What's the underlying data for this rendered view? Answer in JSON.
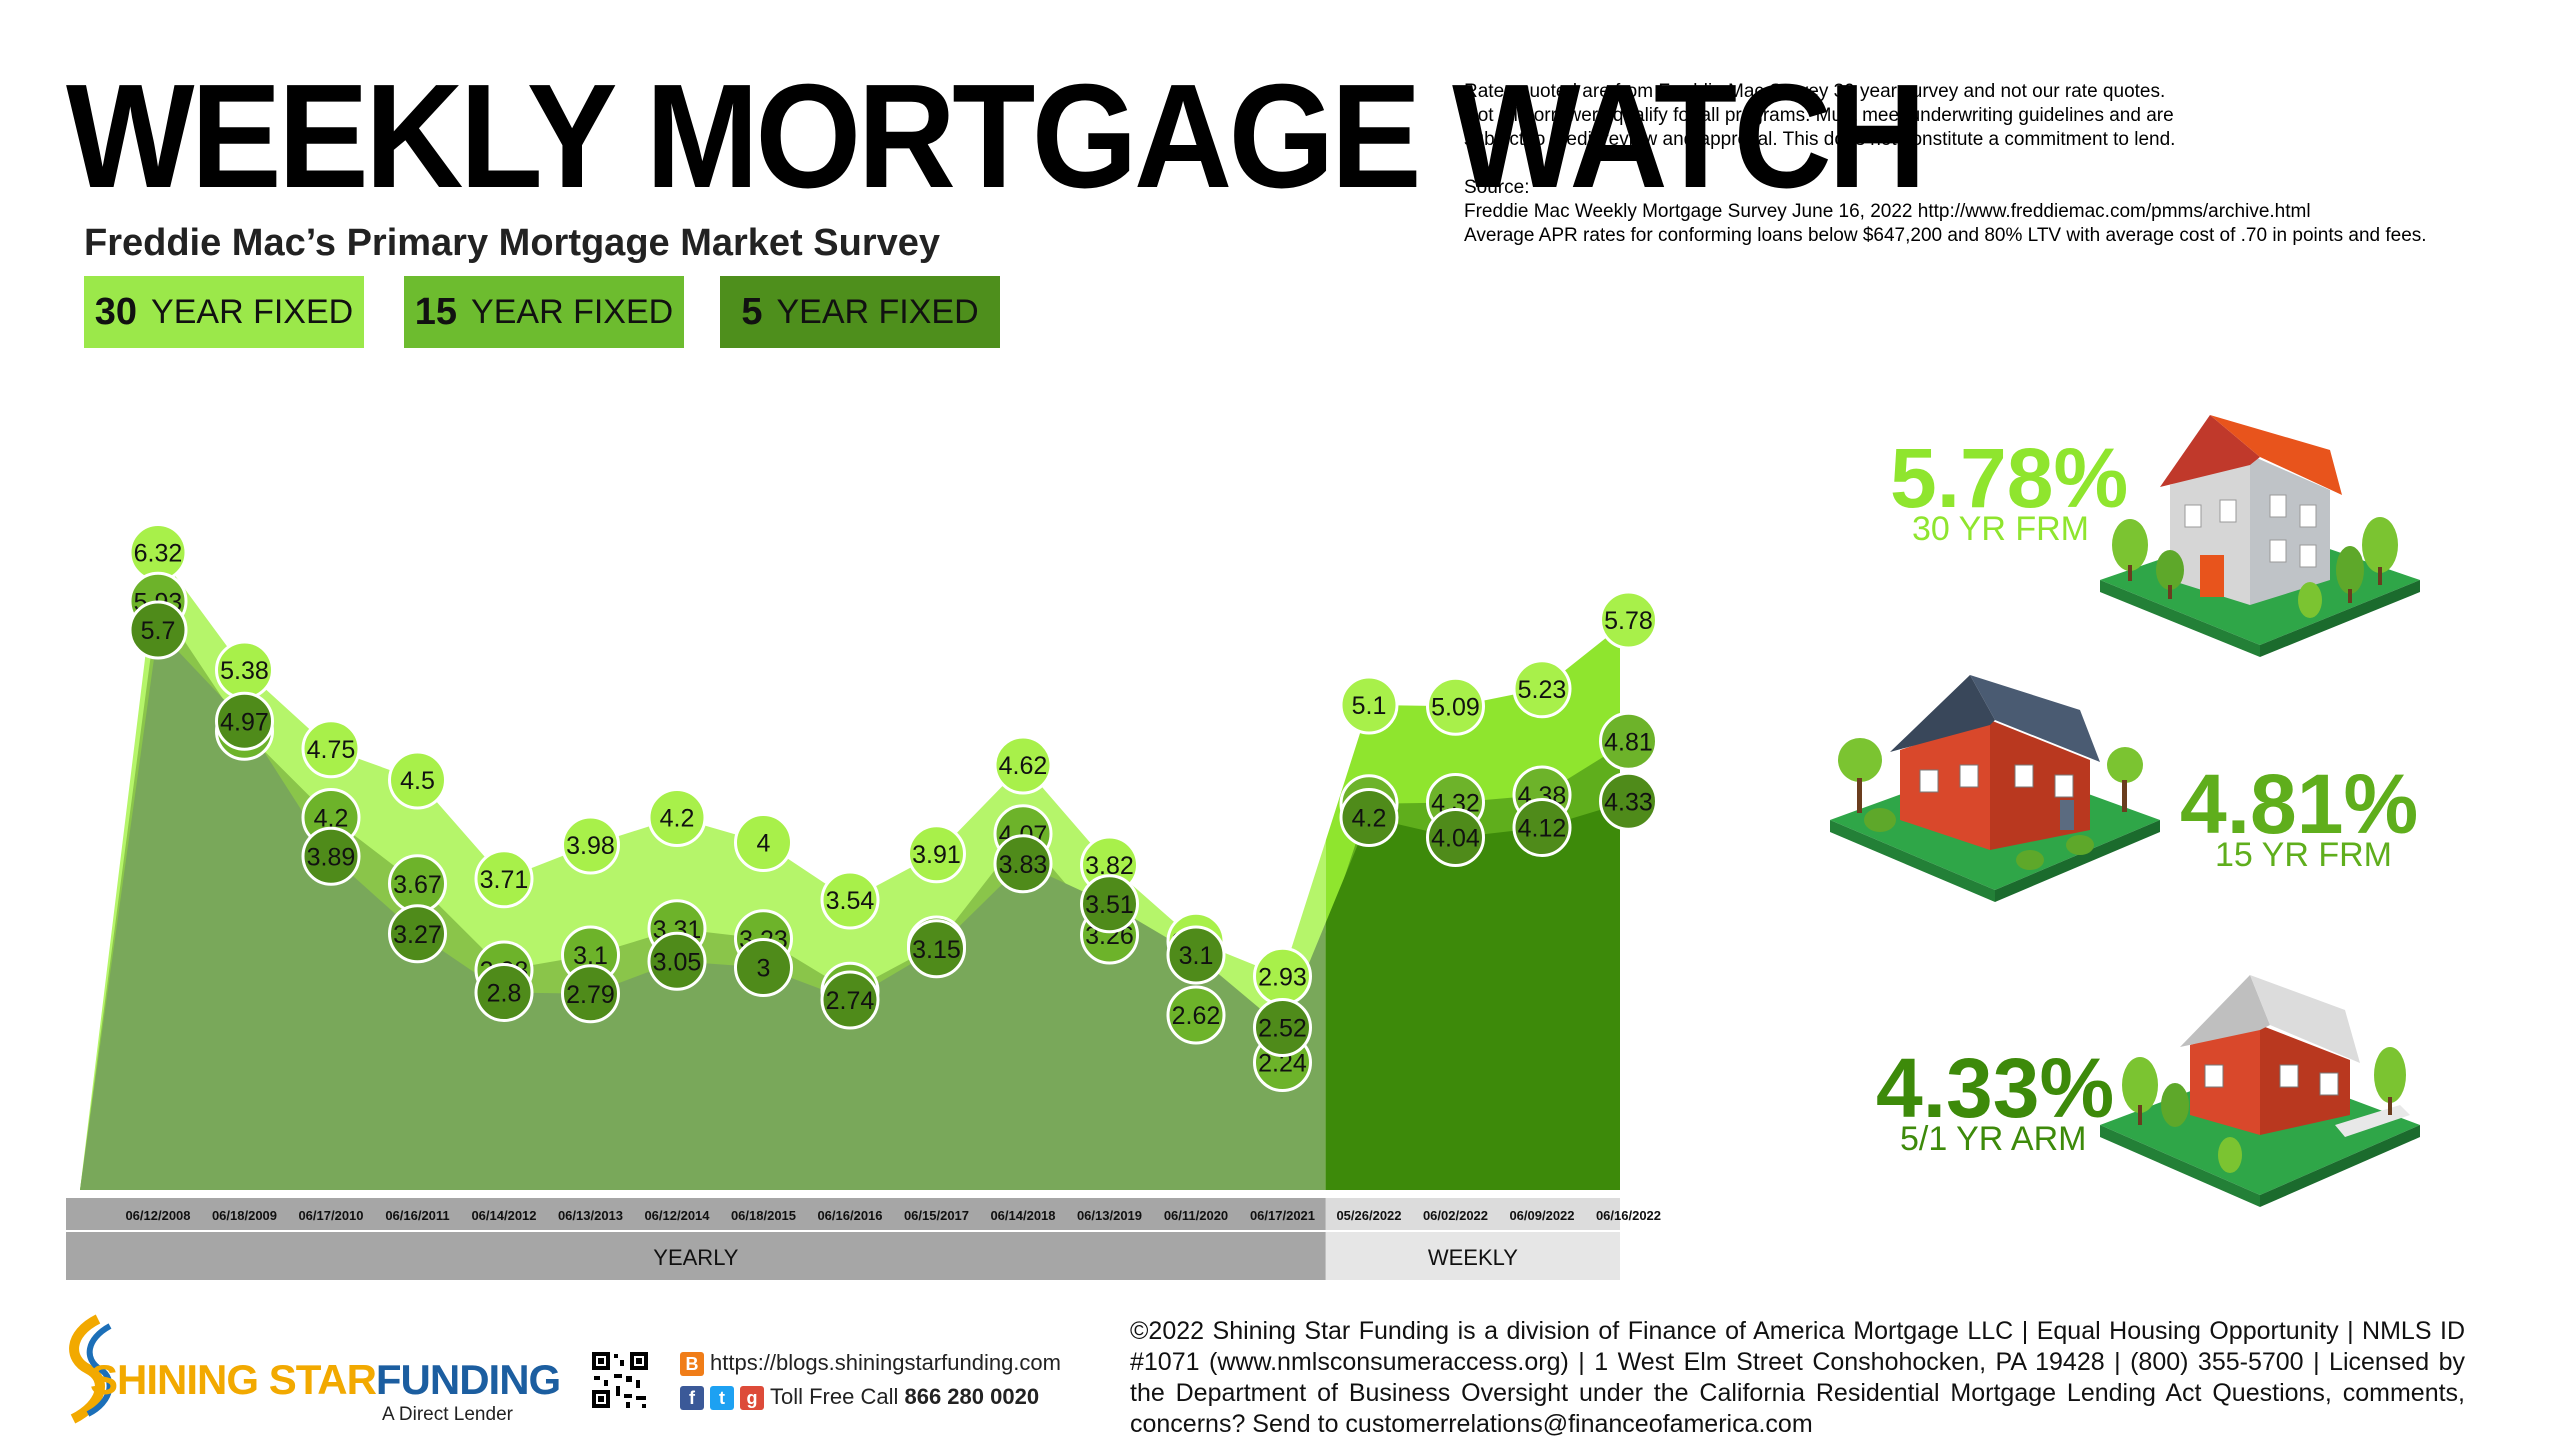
{
  "title": "WEEKLY MORTGAGE WATCH",
  "subtitle": "Freddie Mac’s Primary Mortgage Market Survey",
  "legend": [
    {
      "num": "30",
      "label": "YEAR FIXED",
      "color": "#9be84a"
    },
    {
      "num": "15",
      "label": "YEAR FIXED",
      "color": "#6dbc2f"
    },
    {
      "num": "5",
      "label": "YEAR FIXED",
      "color": "#4e8f1c"
    }
  ],
  "disclaimer": {
    "line1": "Rates quoted are from Freddie Mac Survey 30 year survey and not our rate quotes.",
    "line2": "Not all borrowers qualify for all programs. Must meet underwriting guidelines and are",
    "line3": "subject to credit review and approval. This does not constitute a commitment to lend.",
    "source_label": "Source:",
    "source1": "Freddie Mac Weekly Mortgage Survey June 16, 2022 http://www.freddiemac.com/pmms/archive.html",
    "source2": "Average APR rates for conforming loans below $647,200 and 80%  LTV with average cost of .70 in points and fees."
  },
  "chart_data": {
    "type": "area",
    "categories": [
      "06/12/2008",
      "06/18/2009",
      "06/17/2010",
      "06/16/2011",
      "06/14/2012",
      "06/13/2013",
      "06/12/2014",
      "06/18/2015",
      "06/16/2016",
      "06/15/2017",
      "06/14/2018",
      "06/13/2019",
      "06/11/2020",
      "06/17/2021",
      "05/26/2022",
      "06/02/2022",
      "06/09/2022",
      "06/16/2022"
    ],
    "series": [
      {
        "name": "30 YEAR FIXED",
        "values": [
          6.32,
          5.38,
          4.75,
          4.5,
          3.71,
          3.98,
          4.2,
          4,
          3.54,
          3.91,
          4.62,
          3.82,
          3.21,
          2.93,
          5.1,
          5.09,
          5.23,
          5.78
        ]
      },
      {
        "name": "15 YEAR FIXED",
        "values": [
          5.93,
          4.89,
          4.2,
          3.67,
          2.98,
          3.1,
          3.31,
          3.23,
          2.81,
          3.18,
          4.07,
          3.26,
          2.62,
          2.24,
          4.31,
          4.32,
          4.38,
          4.81
        ]
      },
      {
        "name": "5 YEAR FIXED",
        "values": [
          5.7,
          4.97,
          3.89,
          3.27,
          2.8,
          2.79,
          3.05,
          3,
          2.74,
          3.15,
          3.83,
          3.51,
          3.1,
          2.52,
          4.2,
          4.04,
          4.12,
          4.33
        ]
      }
    ],
    "groups": [
      {
        "label": "YEARLY",
        "count": 14
      },
      {
        "label": "WEEKLY",
        "count": 4
      }
    ],
    "colors": {
      "s30_yearly": "#b5f56a",
      "s15_yearly": "#8ac54a",
      "s5_yearly": "#79a85a",
      "s30_weekly": "#8fe52e",
      "s15_weekly": "#5fae1c",
      "s5_weekly": "#3d8a0a",
      "marker_30": "#a8f04a",
      "marker_15": "#6db32a",
      "marker_5": "#4f8b1a"
    }
  },
  "highlights": [
    {
      "rate": "5.78%",
      "label": "30 YR FRM",
      "color": "#8fe52e"
    },
    {
      "rate": "4.81%",
      "label": "15 YR FRM",
      "color": "#5fae1c"
    },
    {
      "rate": "4.33%",
      "label": "5/1 YR ARM",
      "color": "#3d8a0a"
    }
  ],
  "footer": {
    "text": "©2022 Shining Star Funding is a division of Finance of America Mortgage LLC | Equal Housing Opportunity | NMLS ID #1071 (www.nmlsconsumeraccess.org) | 1 West Elm Street Conshohocken, PA 19428 | (800) 355-5700 | Licensed by the Department of Business Oversight under the California Residential Mortgage Lending Act Questions, comments, concerns? Send to customerrelations@financeofamerica.com",
    "logo_word1": "SHINING ",
    "logo_word2": "STAR",
    "logo_word3": "FUNDING",
    "logo_sub": "A Direct Lender",
    "blog": "https://blogs.shiningstarfunding.com",
    "tollfree_label": "Toll Free Call ",
    "tollfree_number": "866 280 0020"
  }
}
